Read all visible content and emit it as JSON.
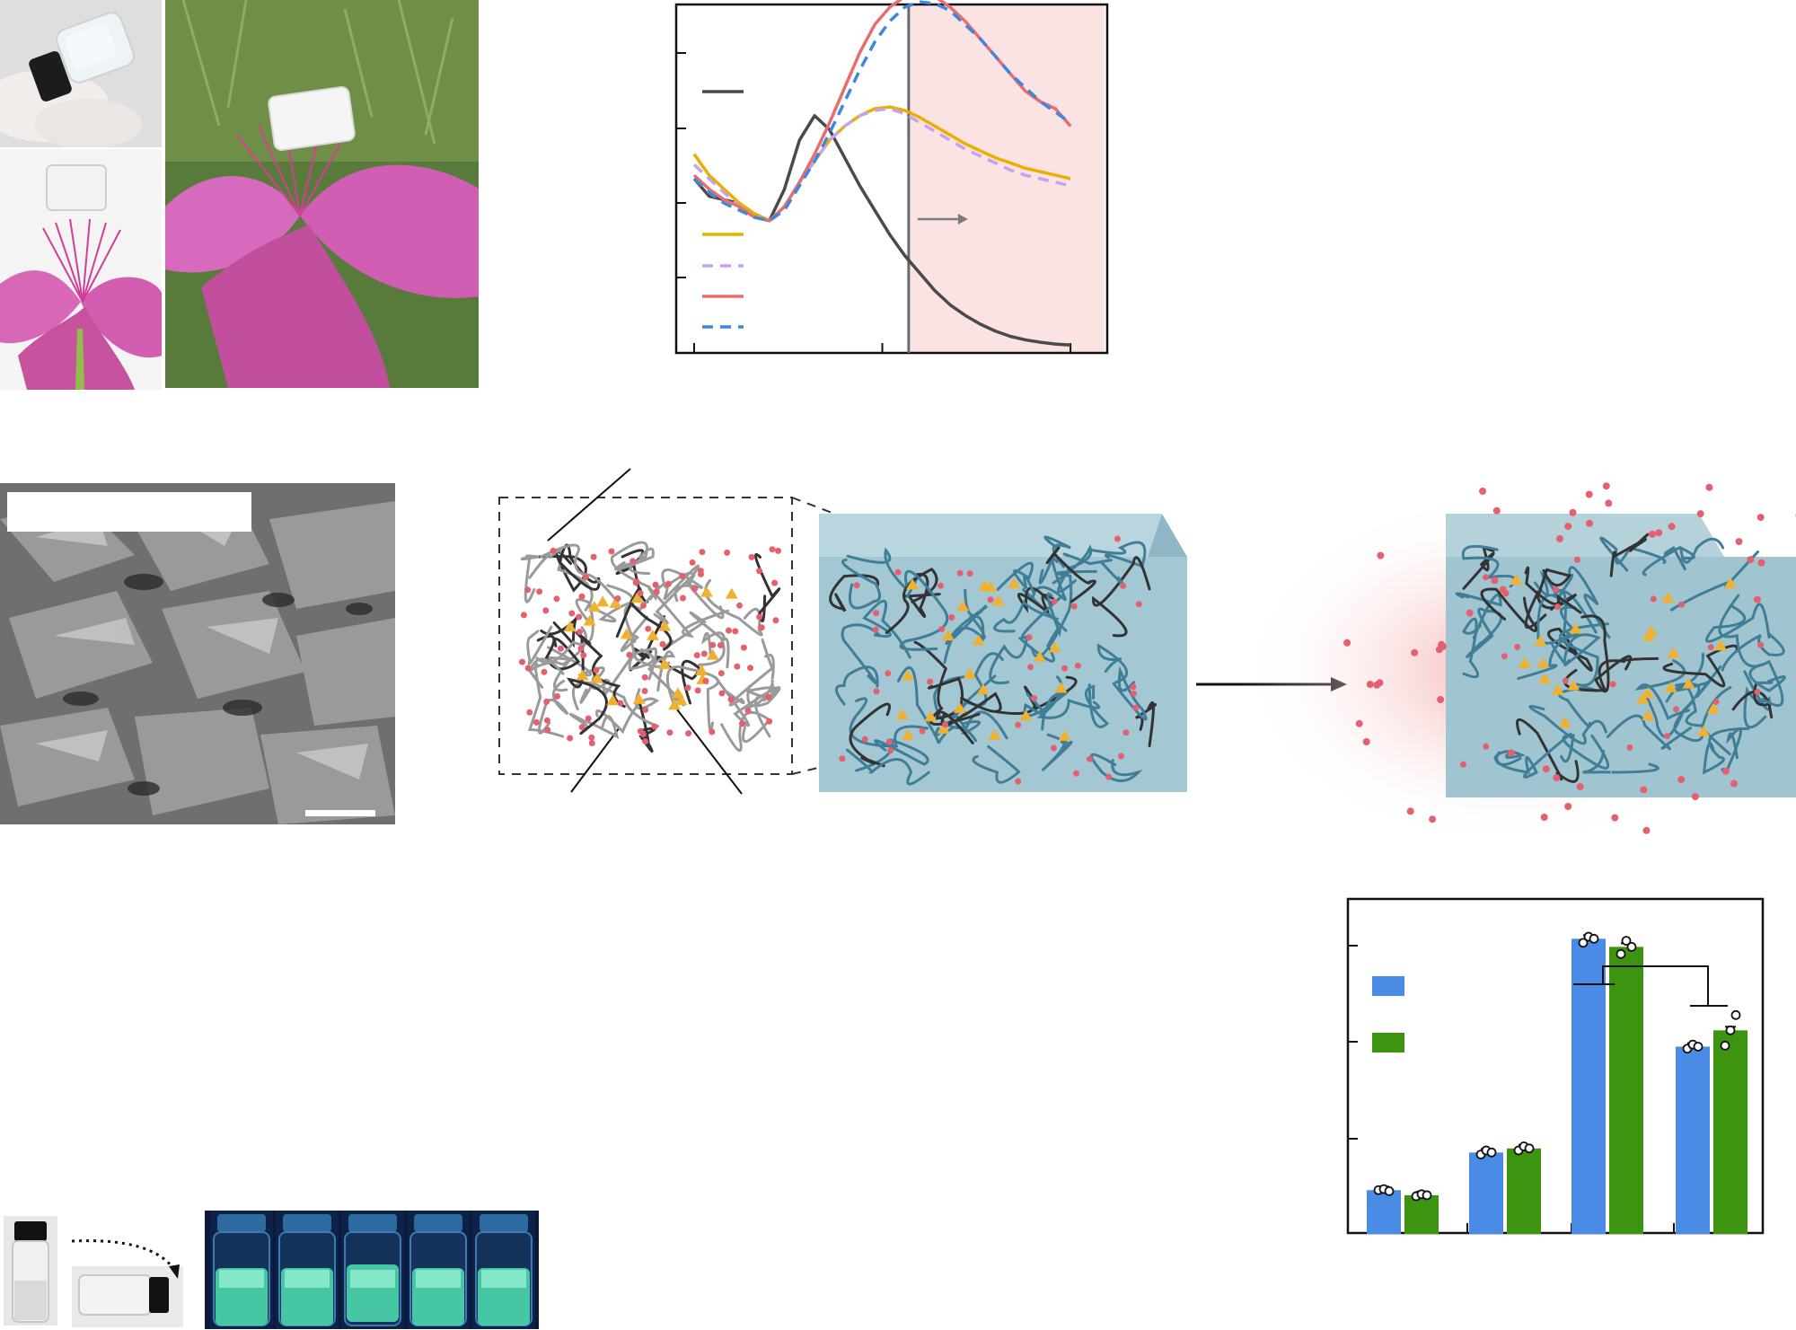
{
  "colors": {
    "dark_line": "#4a4a4a",
    "yellow": "#e8b000",
    "lavender": "#c5a3ee",
    "red": "#ea6d6d",
    "blue": "#3f86dd",
    "shade": "#fbe3e3",
    "bar_blue": "#4a8be6",
    "bar_green": "#3c9410",
    "gel_blue": "#9fc6d3",
    "fiber_teal": "#3f7e96",
    "particle_red": "#e4606f",
    "cluster_gold": "#f0b030"
  },
  "icons": {
    "photo_vial_in_glove": "vial-in-gloved-hand-photo",
    "photo_gel_on_flower_closeup": "gel-on-pink-flower-photo",
    "photo_gel_on_flower_field": "gel-on-flower-in-grass-photo",
    "sem_image": "sem-micrograph",
    "vial_inversion_photo": "vial-inversion-photo",
    "uv_vials_photo": "glowing-vials-under-uv-photo",
    "flow_arrow": "right-arrow-icon",
    "inversion_arrow": "curved-dotted-arrow-icon"
  },
  "chart_data": [
    {
      "type": "line",
      "x": [
        0,
        4,
        8,
        12,
        16,
        20,
        24,
        28,
        32,
        36,
        40,
        44,
        48,
        52,
        56,
        60,
        64,
        68,
        72,
        76,
        80,
        84,
        88,
        92,
        96,
        100
      ],
      "xlim": [
        -5,
        110
      ],
      "ylim": [
        0,
        100
      ],
      "grid": false,
      "series": [
        {
          "key": "dark",
          "style": "solid",
          "values": [
            50,
            45,
            44,
            43,
            40,
            38,
            47,
            61,
            68,
            64,
            56,
            48,
            41,
            34,
            28,
            23,
            18,
            14,
            11,
            8.5,
            6.5,
            5,
            4,
            3.3,
            2.8,
            2.5
          ]
        },
        {
          "key": "yellow",
          "style": "solid",
          "values": [
            57,
            51,
            47,
            43,
            40,
            38,
            42,
            49,
            55,
            61,
            65,
            68,
            70,
            70.5,
            69.5,
            67.5,
            65,
            62.5,
            60,
            58,
            56,
            54.5,
            53,
            52,
            51,
            50
          ]
        },
        {
          "key": "lavender",
          "style": "dashed",
          "values": [
            54,
            50,
            46,
            42,
            39,
            38,
            42,
            49,
            55,
            61,
            65,
            68,
            69.5,
            70,
            68.5,
            66,
            63.5,
            61,
            58.5,
            56.5,
            54.5,
            52.5,
            51,
            50,
            49,
            48
          ]
        },
        {
          "key": "red",
          "style": "solid",
          "values": [
            51,
            47,
            44,
            42,
            39,
            38,
            42,
            49,
            57,
            66,
            76,
            86,
            94,
            99,
            102,
            103,
            102,
            99,
            95,
            90,
            85,
            80,
            75,
            72,
            70,
            65
          ]
        },
        {
          "key": "blue",
          "style": "dashed",
          "values": [
            50,
            46,
            43,
            41,
            39,
            38,
            41,
            48,
            55,
            63,
            72,
            81,
            89,
            95,
            99,
            100.5,
            100,
            98,
            94,
            90,
            85,
            80,
            76,
            72,
            69,
            66
          ]
        }
      ],
      "marker_x": 57,
      "shaded_from_x": 57
    },
    {
      "type": "bar",
      "categories": [
        "",
        "",
        "",
        ""
      ],
      "ylim": [
        0,
        3.3
      ],
      "series": [
        {
          "key": "blue",
          "values": [
            0.43,
            0.8,
            2.9,
            1.84
          ],
          "points": [
            [
              0.43,
              0.44,
              0.42
            ],
            [
              0.78,
              0.82,
              0.8
            ],
            [
              2.86,
              2.92,
              2.9
            ],
            [
              1.82,
              1.86,
              1.84
            ]
          ]
        },
        {
          "key": "green",
          "values": [
            0.38,
            0.84,
            2.82,
            2.0
          ],
          "points": [
            [
              0.37,
              0.39,
              0.38
            ],
            [
              0.82,
              0.86,
              0.84
            ],
            [
              2.75,
              2.88,
              2.82
            ],
            [
              1.85,
              2.0,
              2.15
            ]
          ]
        }
      ]
    }
  ]
}
